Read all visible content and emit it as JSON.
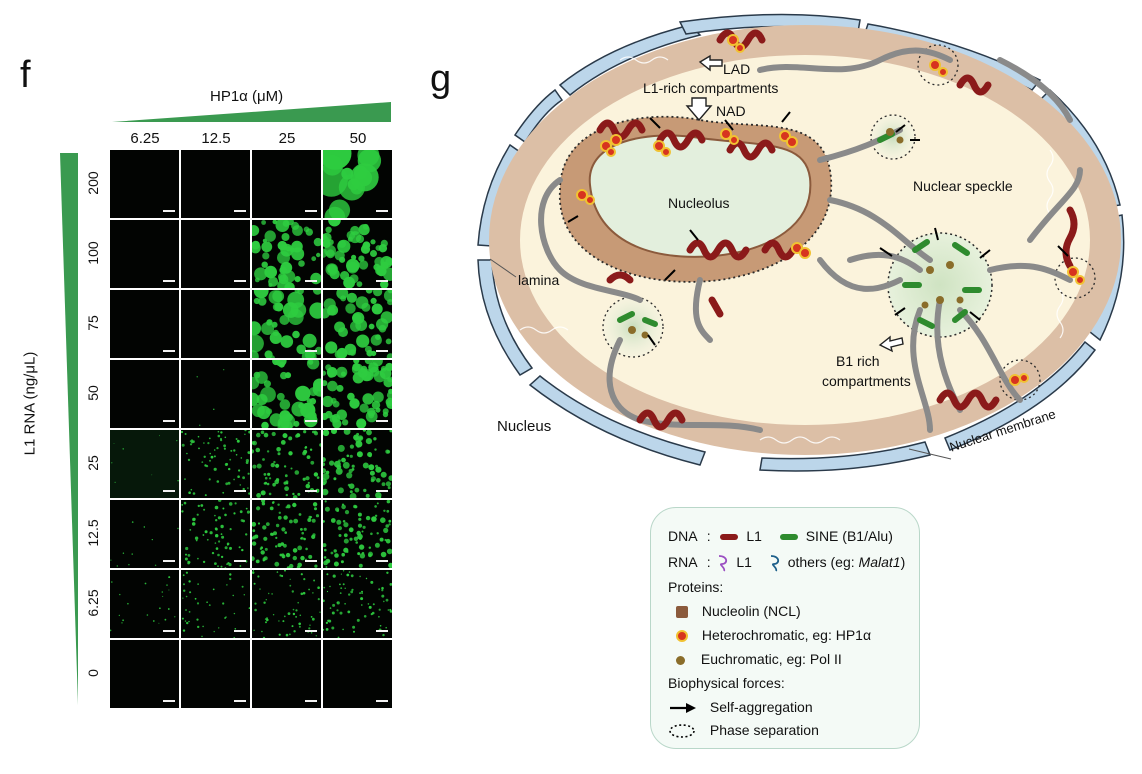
{
  "panel_f": {
    "letter": "f",
    "x_axis_title": "HP1α (μM)",
    "y_axis_title": "L1 RNA (ng/μL)",
    "columns": [
      "6.25",
      "12.5",
      "25",
      "50"
    ],
    "rows": [
      "200",
      "100",
      "75",
      "50",
      "25",
      "12.5",
      "6.25",
      "0"
    ],
    "droplet_color": "#2ecc40",
    "wedge_color": "#3a9a50"
  },
  "panel_g": {
    "letter": "g",
    "labels": {
      "lad": "LAD",
      "l1_rich": "L1-rich compartments",
      "nad": "NAD",
      "nucleolus": "Nucleolus",
      "nuclear_speckle": "Nuclear speckle",
      "lamina": "lamina",
      "b1_rich_line1": "B1 rich",
      "b1_rich_line2": "compartments",
      "nucleus": "Nucleus",
      "nuclear_membrane": "Nuclear membrane"
    },
    "colors": {
      "l1_dna": "#8b1a1a",
      "sine_dna": "#2e8b2e",
      "chromatin": "#8a8a8a",
      "nucleoplasm": "#fbf3dc",
      "periphery": "#dcbfa6",
      "membrane": "#bcd6ea",
      "nucleolus": "#e3efdd"
    }
  },
  "legend": {
    "dna_label": "DNA",
    "rna_label": "RNA",
    "sep": ":",
    "l1": "L1",
    "sine": "SINE (B1/Alu)",
    "rna_l1": "L1",
    "rna_others_prefix": "others (eg: ",
    "rna_others_italic": "Malat1",
    "rna_others_suffix": ")",
    "proteins": "Proteins:",
    "ncl": "Nucleolin (NCL)",
    "hetero": "Heterochromatic, eg: HP1α",
    "eu": "Euchromatic, eg: Pol II",
    "forces": "Biophysical forces:",
    "self_agg": "Self-aggregation",
    "phase_sep": "Phase separation"
  }
}
